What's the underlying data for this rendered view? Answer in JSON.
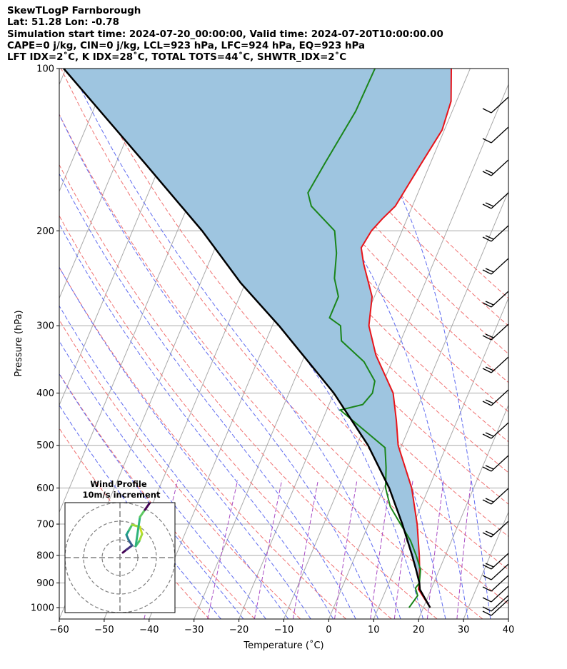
{
  "header": {
    "line1": "SkewTLogP Farnborough",
    "line2": "Lat: 51.28   Lon: -0.78",
    "line3": "Simulation start time: 2024-07-20_00:00:00, Valid time: 2024-07-20T10:00:00.00",
    "line4": "CAPE=0 j/kg, CIN=0 j/kg, LCL=923 hPa, LFC=924 hPa, EQ=923 hPa",
    "line5": "LFT IDX=2˚C, K IDX=28˚C, TOTAL TOTS=44˚C, SHWTR_IDX=2˚C"
  },
  "chart_data": {
    "type": "line",
    "subtype": "skew-t log-p",
    "xlabel": "Temperature (˚C)",
    "ylabel": "Pressure (hPa)",
    "xlim": [
      -60,
      40
    ],
    "ylim": [
      1050,
      100
    ],
    "y_scale": "log",
    "x_ticks": [
      "−60",
      "−50",
      "−40",
      "−30",
      "−20",
      "−10",
      "0",
      "10",
      "20",
      "30",
      "40"
    ],
    "y_ticks": [
      "100",
      "200",
      "300",
      "400",
      "500",
      "600",
      "700",
      "800",
      "900",
      "1000"
    ],
    "grid": true,
    "colors": {
      "temperature": "#e8141a",
      "dewpoint": "#1a851a",
      "parcel": "#000000",
      "cape_fill": "#9ec5e0",
      "dry_adiabat": "#f07070",
      "moist_adiabat": "#5f6bf0",
      "mixing_ratio": "#a84ac4",
      "isotherm": "#a8a8a8"
    },
    "series": [
      {
        "name": "temperature",
        "p": [
          1000,
          925,
          900,
          850,
          800,
          700,
          600,
          500,
          450,
          400,
          340,
          300,
          265,
          230,
          215,
          200,
          190,
          180,
          150,
          130,
          115,
          100
        ],
        "t": [
          21.5,
          17.2,
          16.8,
          15.6,
          14.2,
          10.8,
          6.2,
          -0.8,
          -3.5,
          -6.8,
          -14.2,
          -18.5,
          -20.5,
          -25.5,
          -27.5,
          -26.8,
          -25.5,
          -23.8,
          -22.0,
          -20.5,
          -21.2,
          -24.2
        ]
      },
      {
        "name": "dewpoint",
        "p": [
          1000,
          950,
          920,
          900,
          850,
          800,
          750,
          700,
          650,
          600,
          550,
          505,
          430,
          420,
          400,
          380,
          350,
          320,
          300,
          290,
          265,
          245,
          220,
          200,
          180,
          170,
          150,
          120,
          100
        ],
        "t": [
          16.8,
          17.6,
          16.4,
          16.8,
          15.8,
          13.5,
          10.8,
          7.1,
          3.2,
          0.4,
          -1.4,
          -3.5,
          -17.0,
          -12.5,
          -11.4,
          -12.0,
          -16.2,
          -23.2,
          -24.8,
          -28.0,
          -28.0,
          -30.6,
          -32.5,
          -35.0,
          -42.5,
          -44.5,
          -43.5,
          -41.5,
          -41.2
        ]
      },
      {
        "name": "parcel",
        "p": [
          1000,
          925,
          900,
          850,
          800,
          700,
          600,
          500,
          400,
          300,
          250,
          200,
          150,
          100
        ],
        "t": [
          21.5,
          17.5,
          16.8,
          14.8,
          12.6,
          7.5,
          1.2,
          -7.5,
          -20.0,
          -38.5,
          -51.0,
          -64.5,
          -83.5,
          -110.5
        ]
      }
    ],
    "wind_barbs_label": "",
    "inset": {
      "title_line1": "Wind Profile",
      "title_line2": "10m/s increment",
      "rings": 3
    }
  }
}
